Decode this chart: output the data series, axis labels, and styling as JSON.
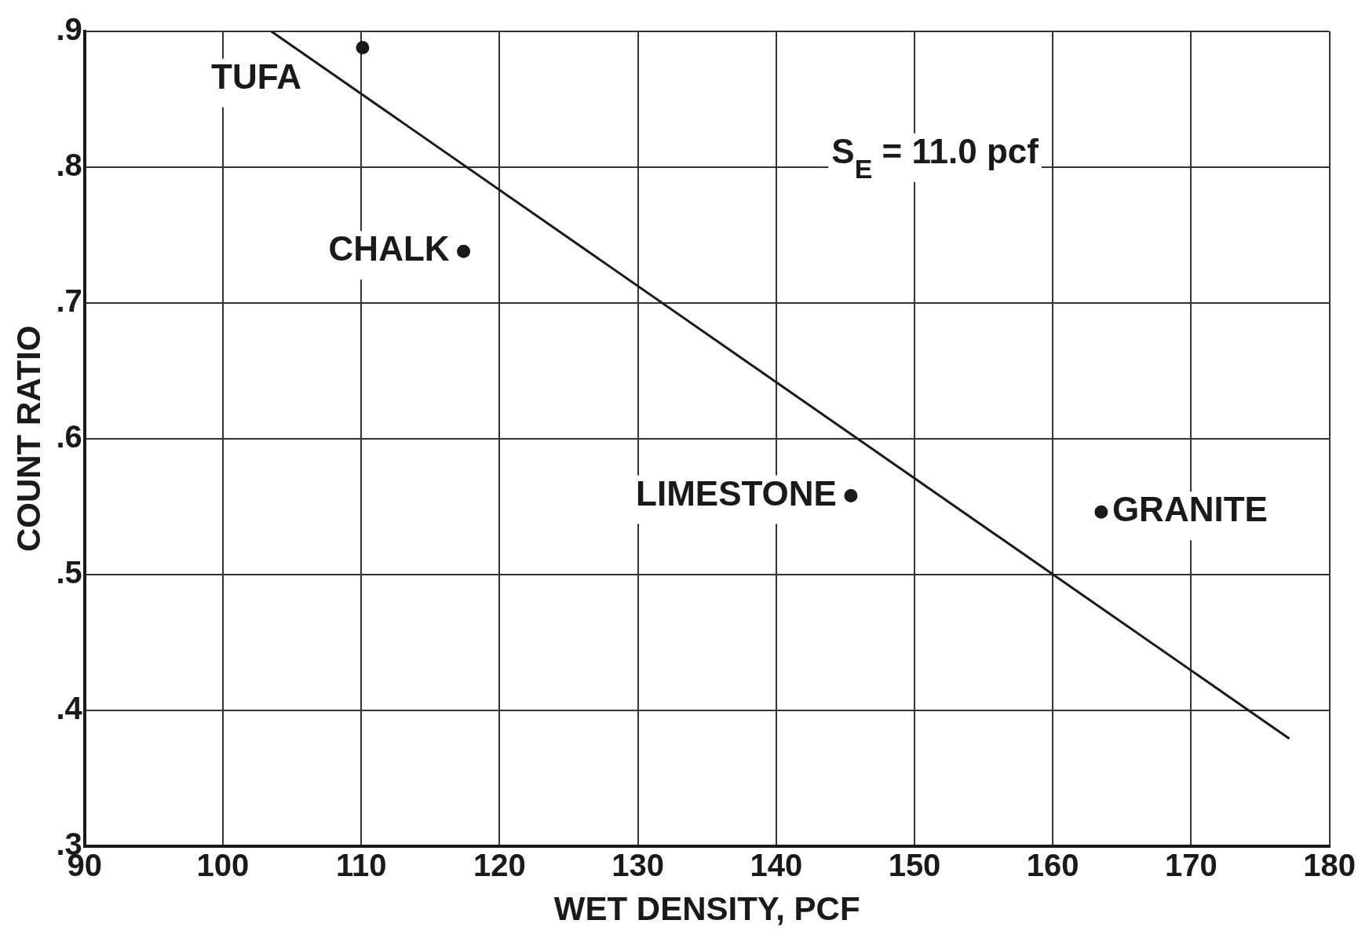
{
  "chart_data": {
    "type": "scatter",
    "xlabel": "WET DENSITY, PCF",
    "ylabel": "COUNT RATIO",
    "xlim": [
      90,
      180
    ],
    "xticks": [
      90,
      100,
      110,
      120,
      130,
      140,
      150,
      160,
      170,
      180
    ],
    "ylim": [
      0.3,
      0.9
    ],
    "yticks": [
      {
        "value": 0.3,
        "label": ".3"
      },
      {
        "value": 0.4,
        "label": ".4"
      },
      {
        "value": 0.5,
        "label": ".5"
      },
      {
        "value": 0.6,
        "label": ".6"
      },
      {
        "value": 0.7,
        "label": ".7"
      },
      {
        "value": 0.8,
        "label": ".8"
      },
      {
        "value": 0.9,
        "label": ".9"
      }
    ],
    "grid": true,
    "legend": false,
    "marker": "circle",
    "series": [
      {
        "type": "scatter",
        "color": "#1a1a1a",
        "x": [
          110.1,
          117.4,
          145.4,
          163.5
        ],
        "values": [
          0.888,
          0.738,
          0.558,
          0.546
        ]
      },
      {
        "type": "line",
        "color": "#1a1a1a",
        "x": [
          103.5,
          177.1
        ],
        "values": [
          0.9,
          0.379
        ],
        "marker": "none",
        "line_style": "solid"
      }
    ],
    "annotations": [
      {
        "text": "TUFA",
        "x": 110.1,
        "y": 0.888
      },
      {
        "text": "CHALK",
        "x": 117.4,
        "y": 0.738
      },
      {
        "text": "LIMESTONE",
        "x": 145.4,
        "y": 0.558
      },
      {
        "text": "GRANITE",
        "x": 163.5,
        "y": 0.546
      },
      "S$_{E}$ = 11.0 pcf"
    ]
  }
}
